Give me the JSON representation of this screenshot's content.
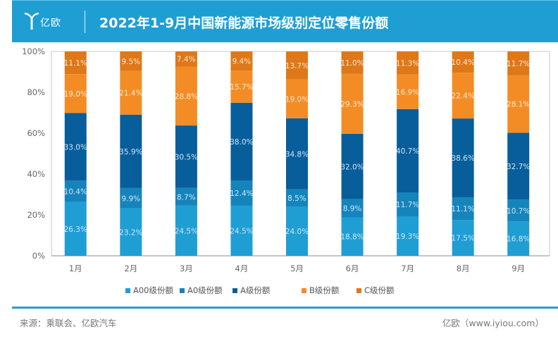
{
  "header": {
    "logo_text": "亿欧",
    "title": "2022年1-9月中国新能源市场级别定位零售份额"
  },
  "footer": {
    "source": "来源：乘联会、亿欧汽车",
    "credit": "亿欧（www.iyiou.com）"
  },
  "colors": {
    "header_bg": "#1f9ed4",
    "footer_line": "#2a9fcc"
  },
  "chart_data": {
    "type": "bar",
    "stacked": true,
    "title": "2022年1-9月中国新能源市场级别定位零售份额",
    "xlabel": "",
    "ylabel": "",
    "ylim": [
      0,
      100
    ],
    "yticks": [
      "0%",
      "20%",
      "40%",
      "60%",
      "80%",
      "100%"
    ],
    "categories": [
      "1月",
      "2月",
      "3月",
      "4月",
      "5月",
      "6月",
      "7月",
      "8月",
      "9月"
    ],
    "grid": false,
    "legend_position": "bottom",
    "series": [
      {
        "name": "A00级份额",
        "color": "#1f9ed4",
        "values": [
          26.3,
          23.2,
          24.5,
          24.5,
          24.0,
          18.8,
          19.3,
          17.5,
          16.8
        ],
        "labels": [
          "26.3%",
          "23.2%",
          "24.5%",
          "24.5%",
          "24.0%",
          "18.8%",
          "19.3%",
          "17.5%",
          "16.8%"
        ]
      },
      {
        "name": "A0级份额",
        "color": "#1584bb",
        "values": [
          10.4,
          9.9,
          8.7,
          12.4,
          8.5,
          8.9,
          11.7,
          11.1,
          10.7
        ],
        "labels": [
          "10.4%",
          "9.9%",
          "8.7%",
          "12.4%",
          "8.5%",
          "8.9%",
          "11.7%",
          "11.1%",
          "10.7%"
        ]
      },
      {
        "name": "A级份额",
        "color": "#075e9b",
        "values": [
          33.0,
          35.9,
          30.5,
          38.0,
          34.8,
          32.0,
          40.7,
          38.6,
          32.7
        ],
        "labels": [
          "33.0%",
          "35.9%",
          "30.5%",
          "38.0%",
          "34.8%",
          "32.0%",
          "40.7%",
          "38.6%",
          "32.7%"
        ]
      },
      {
        "name": "B级份额",
        "color": "#f48c26",
        "values": [
          19.0,
          21.4,
          28.8,
          15.7,
          19.0,
          29.3,
          16.9,
          22.4,
          28.1
        ],
        "labels": [
          "19.0%",
          "21.4%",
          "28.8%",
          "15.7%",
          "19.0%",
          "29.3%",
          "16.9%",
          "22.4%",
          "28.1%"
        ]
      },
      {
        "name": "C级份额",
        "color": "#de7818",
        "values": [
          11.1,
          9.5,
          7.4,
          9.4,
          13.7,
          11.0,
          11.3,
          10.4,
          11.7
        ],
        "labels": [
          "11.1%",
          "9.5%",
          "7.4%",
          "9.4%",
          "13.7%",
          "11.0%",
          "11.3%",
          "10.4%",
          "11.7%"
        ]
      }
    ]
  }
}
